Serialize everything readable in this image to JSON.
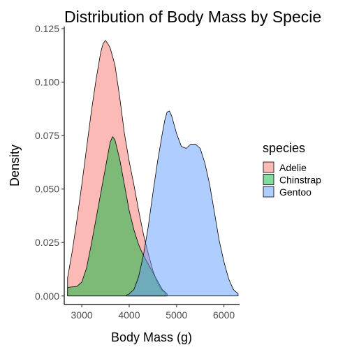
{
  "chart_data": {
    "type": "area",
    "title": "Distribution of Body Mass by Specie",
    "xlabel": "Body Mass (g)",
    "ylabel": "Density",
    "xlim": [
      2630,
      6330
    ],
    "ylim": [
      -0.004,
      0.126
    ],
    "x_ticks": [
      3000,
      4000,
      5000,
      6000
    ],
    "x_tick_labels": [
      "3000",
      "4000",
      "5000",
      "6000"
    ],
    "y_ticks": [
      0.0,
      0.025,
      0.05,
      0.075,
      0.1,
      0.125
    ],
    "y_tick_labels": [
      "0.000",
      "0.025",
      "0.050",
      "0.075",
      "0.100",
      "0.125"
    ],
    "grid": false,
    "legend": {
      "title": "species",
      "position": "right"
    },
    "series": [
      {
        "name": "Adelie",
        "color": "#F8766D",
        "x": [
          2700,
          2800,
          2900,
          3000,
          3100,
          3200,
          3300,
          3400,
          3450,
          3500,
          3550,
          3600,
          3700,
          3800,
          3900,
          4000,
          4100,
          4200,
          4300,
          4400,
          4500,
          4600,
          4700,
          4775
        ],
        "y": [
          0.0085,
          0.021,
          0.036,
          0.052,
          0.069,
          0.086,
          0.101,
          0.114,
          0.118,
          0.1195,
          0.118,
          0.116,
          0.108,
          0.093,
          0.076,
          0.063,
          0.052,
          0.04,
          0.029,
          0.02,
          0.012,
          0.006,
          0.0025,
          0.0015
        ]
      },
      {
        "name": "Chinstrap",
        "color": "#00BA38",
        "x": [
          2700,
          2900,
          3000,
          3100,
          3200,
          3300,
          3400,
          3500,
          3600,
          3650,
          3700,
          3800,
          3900,
          4000,
          4100,
          4200,
          4300,
          4400,
          4500,
          4600,
          4700,
          4800
        ],
        "y": [
          0.004,
          0.0045,
          0.0065,
          0.013,
          0.024,
          0.036,
          0.048,
          0.06,
          0.072,
          0.0745,
          0.073,
          0.064,
          0.052,
          0.04,
          0.031,
          0.024,
          0.019,
          0.015,
          0.011,
          0.007,
          0.003,
          0.001
        ]
      },
      {
        "name": "Gentoo",
        "color": "#619CFF",
        "x": [
          3950,
          4000,
          4100,
          4200,
          4300,
          4400,
          4500,
          4600,
          4700,
          4750,
          4800,
          4850,
          4900,
          5000,
          5100,
          5200,
          5300,
          5400,
          5500,
          5600,
          5700,
          5800,
          5900,
          6000,
          6100,
          6200,
          6300
        ],
        "y": [
          0.0005,
          0.001,
          0.003,
          0.009,
          0.019,
          0.032,
          0.048,
          0.063,
          0.076,
          0.082,
          0.086,
          0.0865,
          0.084,
          0.076,
          0.07,
          0.069,
          0.071,
          0.071,
          0.069,
          0.062,
          0.052,
          0.039,
          0.026,
          0.016,
          0.008,
          0.003,
          0.001
        ]
      }
    ]
  }
}
